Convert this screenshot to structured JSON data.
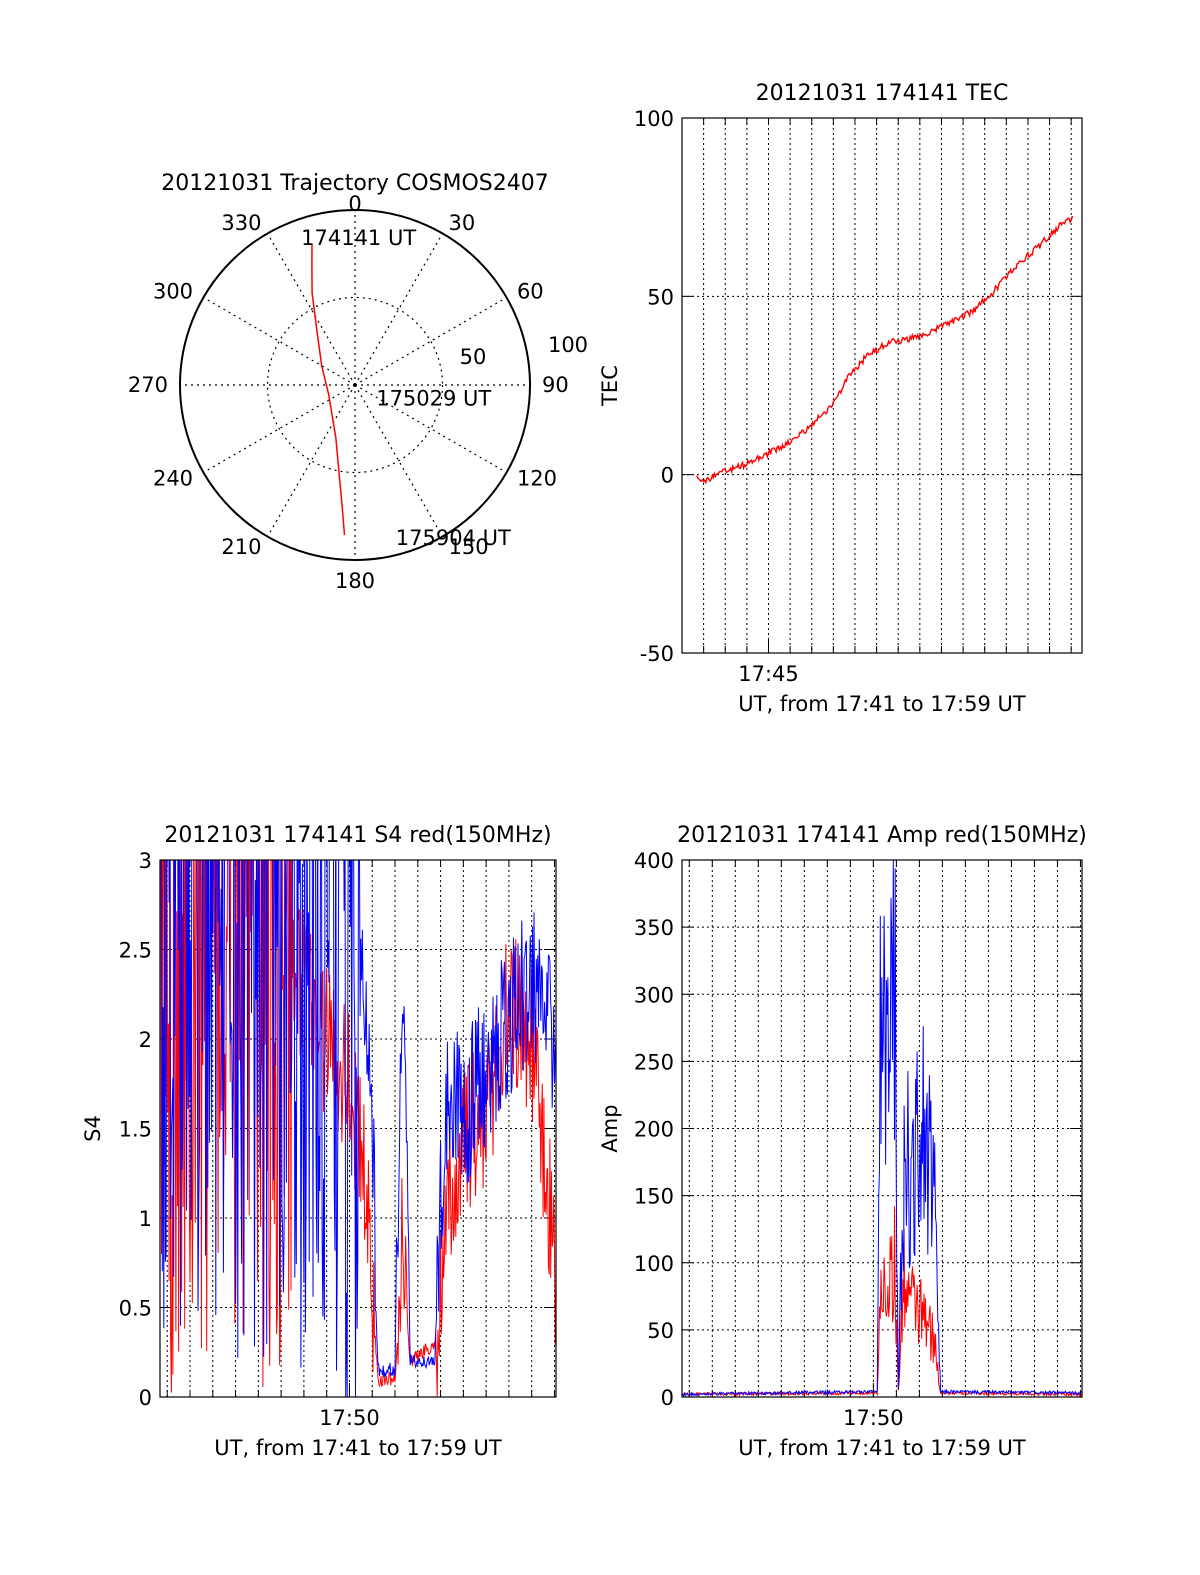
{
  "chart_data": [
    {
      "type": "polar",
      "title": "20121031 Trajectory COSMOS2407",
      "azimuth_labels": [
        "0",
        "30",
        "60",
        "90",
        "120",
        "150",
        "180",
        "210",
        "240",
        "270",
        "300",
        "330"
      ],
      "radial_labels": [
        "50",
        "100"
      ],
      "rlim": [
        0,
        100
      ],
      "grid": true,
      "series": [
        {
          "color": "#ff0000",
          "points": [
            {
              "az": 343,
              "r": 84
            },
            {
              "az": 340,
              "r": 72
            },
            {
              "az": 335,
              "r": 58
            },
            {
              "az": 325,
              "r": 38
            },
            {
              "az": 300,
              "r": 22
            },
            {
              "az": 250,
              "r": 16
            },
            {
              "az": 200,
              "r": 32
            },
            {
              "az": 190,
              "r": 52
            },
            {
              "az": 186,
              "r": 70
            },
            {
              "az": 184,
              "r": 86
            }
          ]
        }
      ],
      "annotations": [
        {
          "text": "174141 UT",
          "az": 340,
          "r": 90
        },
        {
          "text": "175029 UT",
          "az": 120,
          "r": 14
        },
        {
          "text": "175904 UT",
          "az": 165,
          "r": 90
        }
      ]
    },
    {
      "type": "line",
      "title": "20121031 174141 TEC",
      "xlabel": "UT, from 17:41 to 17:59 UT",
      "ylabel": "TEC",
      "xlim": [
        "17:41:00",
        "17:59:30"
      ],
      "ylim": [
        -50,
        100
      ],
      "yticks": [
        -50,
        0,
        50,
        100
      ],
      "xticks": [
        {
          "label": "17:45",
          "t": "17:45:00"
        }
      ],
      "grid": true,
      "series": [
        {
          "color": "#ff0000",
          "points": [
            [
              "17:41:41",
              0
            ],
            [
              "17:42:00",
              -2
            ],
            [
              "17:43:00",
              1
            ],
            [
              "17:44:00",
              3
            ],
            [
              "17:45:00",
              6
            ],
            [
              "17:46:00",
              9
            ],
            [
              "17:47:00",
              14
            ],
            [
              "17:48:00",
              20
            ],
            [
              "17:48:40",
              27
            ],
            [
              "17:49:30",
              33
            ],
            [
              "17:50:30",
              37
            ],
            [
              "17:51:30",
              38
            ],
            [
              "17:52:30",
              40
            ],
            [
              "17:53:30",
              43
            ],
            [
              "17:54:30",
              46
            ],
            [
              "17:55:30",
              52
            ],
            [
              "17:56:30",
              59
            ],
            [
              "17:57:30",
              64
            ],
            [
              "17:58:30",
              70
            ],
            [
              "17:59:04",
              72
            ]
          ]
        }
      ]
    },
    {
      "type": "line",
      "title": "20121031 174141 S4 red(150MHz)",
      "xlabel": "UT, from 17:41 to 17:59 UT",
      "ylabel": "S4",
      "xlim": [
        "17:41:41",
        "17:59:04"
      ],
      "ylim": [
        0,
        3
      ],
      "yticks": [
        0,
        0.5,
        1,
        1.5,
        2,
        2.5,
        3
      ],
      "xticks": [
        {
          "label": "17:50",
          "t": "17:50:00"
        }
      ],
      "grid": true,
      "series": [
        {
          "color": "#ff0000",
          "points": [
            [
              "17:41:41",
              2.5
            ],
            [
              "17:42:30",
              3
            ],
            [
              "17:44:00",
              3
            ],
            [
              "17:45:30",
              2.9
            ],
            [
              "17:47:00",
              2.5
            ],
            [
              "17:48:00",
              2.3
            ],
            [
              "17:49:00",
              2.0
            ],
            [
              "17:50:00",
              1.8
            ],
            [
              "17:50:40",
              1.2
            ],
            [
              "17:51:00",
              0.6
            ],
            [
              "17:51:15",
              0.1
            ],
            [
              "17:52:00",
              0.1
            ],
            [
              "17:52:20",
              0.9
            ],
            [
              "17:52:40",
              0.2
            ],
            [
              "17:53:45",
              0.3
            ],
            [
              "17:54:00",
              0.5
            ],
            [
              "17:54:20",
              1.0
            ],
            [
              "17:55:00",
              1.4
            ],
            [
              "17:56:00",
              1.6
            ],
            [
              "17:57:00",
              2.2
            ],
            [
              "17:58:00",
              2.0
            ],
            [
              "17:58:40",
              1.2
            ],
            [
              "17:59:04",
              0.6
            ]
          ]
        },
        {
          "color": "#0000ff",
          "points": [
            [
              "17:41:41",
              3
            ],
            [
              "17:44:00",
              3
            ],
            [
              "17:46:00",
              3
            ],
            [
              "17:48:00",
              2.9
            ],
            [
              "17:49:00",
              2.7
            ],
            [
              "17:50:00",
              2.6
            ],
            [
              "17:50:40",
              2.3
            ],
            [
              "17:51:00",
              1.6
            ],
            [
              "17:51:15",
              0.15
            ],
            [
              "17:52:00",
              0.15
            ],
            [
              "17:52:20",
              2.3
            ],
            [
              "17:52:40",
              0.2
            ],
            [
              "17:53:45",
              0.2
            ],
            [
              "17:54:00",
              1.1
            ],
            [
              "17:54:20",
              1.7
            ],
            [
              "17:55:00",
              1.6
            ],
            [
              "17:56:00",
              1.8
            ],
            [
              "17:57:00",
              2.1
            ],
            [
              "17:58:00",
              2.3
            ],
            [
              "17:59:04",
              2.0
            ]
          ]
        }
      ]
    },
    {
      "type": "line",
      "title": "20121031 174141 Amp red(150MHz)",
      "xlabel": "UT, from 17:41 to 17:59 UT",
      "ylabel": "Amp",
      "xlim": [
        "17:41:41",
        "17:59:04"
      ],
      "ylim": [
        0,
        400
      ],
      "yticks": [
        0,
        50,
        100,
        150,
        200,
        250,
        300,
        350,
        400
      ],
      "xticks": [
        {
          "label": "17:50",
          "t": "17:50:00"
        }
      ],
      "grid": true,
      "series": [
        {
          "color": "#ff0000",
          "points": [
            [
              "17:41:41",
              2
            ],
            [
              "17:50:10",
              3
            ],
            [
              "17:50:20",
              80
            ],
            [
              "17:50:40",
              90
            ],
            [
              "17:50:55",
              100
            ],
            [
              "17:51:05",
              5
            ],
            [
              "17:51:20",
              90
            ],
            [
              "17:51:40",
              70
            ],
            [
              "17:52:10",
              60
            ],
            [
              "17:52:40",
              40
            ],
            [
              "17:52:55",
              3
            ],
            [
              "17:59:04",
              2
            ]
          ]
        },
        {
          "color": "#0000ff",
          "points": [
            [
              "17:41:41",
              2
            ],
            [
              "17:50:10",
              4
            ],
            [
              "17:50:20",
              310
            ],
            [
              "17:50:40",
              230
            ],
            [
              "17:50:55",
              340
            ],
            [
              "17:51:05",
              5
            ],
            [
              "17:51:20",
              180
            ],
            [
              "17:51:40",
              160
            ],
            [
              "17:52:10",
              200
            ],
            [
              "17:52:40",
              140
            ],
            [
              "17:52:55",
              4
            ],
            [
              "17:59:04",
              3
            ]
          ]
        }
      ]
    }
  ]
}
